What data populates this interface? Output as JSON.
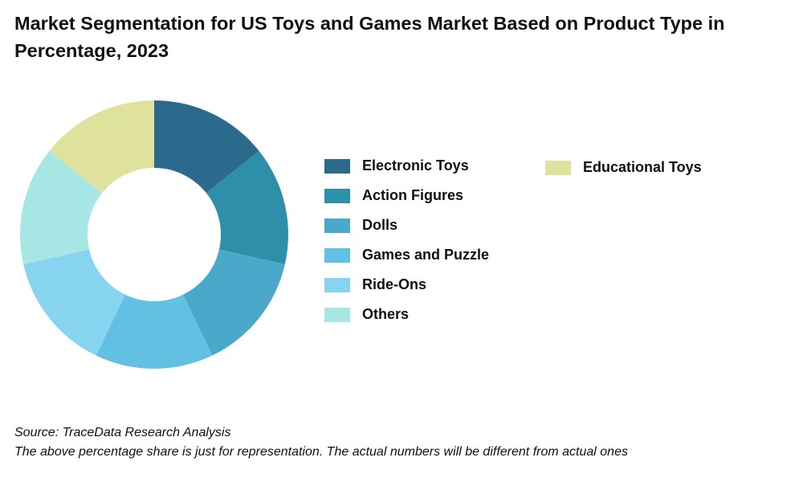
{
  "chart_data": {
    "type": "pie",
    "variant": "donut",
    "title": "Market Segmentation for US Toys and Games Market Based on Product Type in Percentage, 2023",
    "categories": [
      "Electronic Toys",
      "Action Figures",
      "Dolls",
      "Games and Puzzle",
      "Ride-Ons",
      "Others",
      "Educational Toys"
    ],
    "values": [
      14.29,
      14.29,
      14.29,
      14.29,
      14.29,
      14.29,
      14.29
    ],
    "colors": [
      "#2b6a8c",
      "#2e8fa8",
      "#4aa9cb",
      "#62c1e3",
      "#86d4f0",
      "#a6e7e6",
      "#dee29c"
    ],
    "legend_position": "right"
  },
  "legend": {
    "column1": [
      "Electronic Toys",
      "Action Figures",
      "Dolls",
      "Games and Puzzle",
      "Ride-Ons",
      "Others"
    ],
    "column2": [
      "Educational Toys"
    ]
  },
  "footer": {
    "source": "Source: TraceData Research Analysis",
    "note": "The above percentage share is just for representation. The actual numbers will be different from actual ones"
  }
}
